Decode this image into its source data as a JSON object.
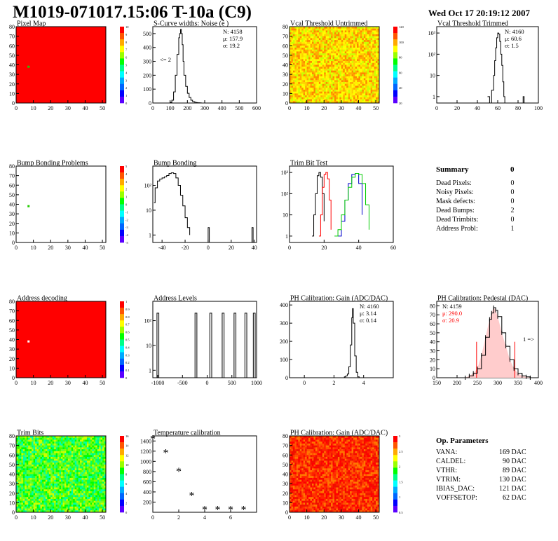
{
  "title": "M1019-071017.15:06 T-10a (C9)",
  "date": "Wed Oct 17 20:19:12 2007",
  "colors": {
    "red": "#ff0000",
    "black": "#000000",
    "blue": "#0000cc",
    "green": "#00cc00",
    "palette": [
      "#5a00ff",
      "#0000ff",
      "#0066ff",
      "#00aaff",
      "#00ffff",
      "#00ff88",
      "#00ff00",
      "#99ff00",
      "#ffff00",
      "#ffaa00",
      "#ff5500",
      "#ff0000"
    ]
  },
  "chart_data": [
    {
      "id": "pixel-map",
      "type": "heatmap",
      "title": "Pixel Map",
      "xlim": [
        0,
        52
      ],
      "ylim": [
        0,
        80
      ],
      "xticks": [
        "0",
        "10",
        "20",
        "30",
        "40",
        "50"
      ],
      "yticks": [
        "0",
        "10",
        "20",
        "30",
        "40",
        "50",
        "60",
        "70",
        "80"
      ],
      "fill": "red",
      "special_pixels": [
        {
          "x": 7,
          "y": 38,
          "level": "green"
        }
      ],
      "palette_labels": [
        "10",
        "9",
        "8",
        "7",
        "6",
        "5",
        "4",
        "3",
        "2",
        "1",
        "0"
      ]
    },
    {
      "id": "scurve-noise",
      "type": "line",
      "title": "S-Curve widths: Noise (e )",
      "xlim": [
        0,
        600
      ],
      "ylim": [
        0,
        550
      ],
      "xticks": [
        "0",
        "100",
        "200",
        "300",
        "400",
        "500",
        "600"
      ],
      "yticks": [
        "0",
        "100",
        "200",
        "300",
        "400",
        "500"
      ],
      "stats": [
        "N: 4158",
        "μ: 157.9",
        "σ: 19.2"
      ],
      "annotation": "<= 2",
      "x": [
        90,
        100,
        110,
        120,
        130,
        140,
        150,
        155,
        160,
        165,
        170,
        175,
        180,
        190,
        200,
        210,
        220,
        230,
        240,
        250,
        260,
        270,
        280
      ],
      "y": [
        0,
        5,
        20,
        80,
        200,
        350,
        470,
        500,
        530,
        500,
        420,
        300,
        200,
        120,
        70,
        40,
        20,
        10,
        6,
        3,
        2,
        1,
        0
      ]
    },
    {
      "id": "vcal-untrimmed",
      "type": "heatmap",
      "title": "Vcal Threshold Untrimmed",
      "xlim": [
        0,
        52
      ],
      "ylim": [
        0,
        80
      ],
      "xticks": [
        "0",
        "10",
        "20",
        "30",
        "40",
        "50"
      ],
      "yticks": [
        "0",
        "10",
        "20",
        "30",
        "40",
        "50",
        "60",
        "70",
        "80"
      ],
      "fill": "noisy-yellow-orange",
      "palette_labels": [
        "120",
        "100",
        "80",
        "60",
        "40",
        "20"
      ]
    },
    {
      "id": "vcal-trimmed",
      "type": "line",
      "title": "Vcal Threshold Trimmed",
      "log_y": true,
      "xlim": [
        0,
        100
      ],
      "ylim": [
        0.5,
        2000
      ],
      "xticks": [
        "0",
        "20",
        "40",
        "60",
        "80",
        "100"
      ],
      "yticks": [
        "1",
        "10",
        "10²",
        "10³"
      ],
      "stats": [
        "N: 4160",
        "μ: 60.6",
        "σ: 1.5"
      ],
      "x": [
        50,
        51,
        52,
        54,
        56,
        57,
        58,
        59,
        60,
        61,
        62,
        63,
        64,
        65,
        66,
        67,
        68,
        70,
        85,
        86
      ],
      "y": [
        1,
        1,
        0,
        2,
        10,
        50,
        200,
        600,
        1000,
        900,
        400,
        100,
        30,
        5,
        1,
        0,
        0,
        0,
        1,
        0
      ]
    },
    {
      "id": "bump-bonding-problems",
      "type": "heatmap",
      "title": "Bump Bonding Problems",
      "xlim": [
        0,
        52
      ],
      "ylim": [
        0,
        80
      ],
      "xticks": [
        "0",
        "10",
        "20",
        "30",
        "40",
        "50"
      ],
      "yticks": [
        "0",
        "10",
        "20",
        "30",
        "40",
        "50",
        "60",
        "70",
        "80"
      ],
      "fill": "white",
      "special_pixels": [
        {
          "x": 7,
          "y": 38,
          "level": "green"
        }
      ],
      "palette_labels": [
        "5",
        "4",
        "3",
        "2",
        "1",
        "0",
        "-1",
        "-2",
        "-3",
        "-4",
        "-5"
      ]
    },
    {
      "id": "bump-bonding",
      "type": "line",
      "title": "Bump Bonding",
      "log_y": true,
      "xlim": [
        -48,
        42
      ],
      "ylim": [
        0.5,
        600
      ],
      "xticks": [
        "-40",
        "-20",
        "0",
        "20",
        "40"
      ],
      "yticks": [
        "1",
        "10",
        "10²"
      ],
      "x": [
        -47,
        -46,
        -44,
        -42,
        -40,
        -38,
        -36,
        -34,
        -32,
        -30,
        -28,
        -26,
        -24,
        -22,
        -20,
        -18,
        -16
      ],
      "y": [
        20,
        80,
        150,
        180,
        200,
        220,
        250,
        300,
        320,
        300,
        200,
        100,
        40,
        15,
        5,
        2,
        1
      ],
      "outliers": [
        {
          "x": 0,
          "y": 1
        },
        {
          "x": 38,
          "y": 1
        }
      ]
    },
    {
      "id": "trim-bit-test",
      "type": "line",
      "title": "Trim Bit Test",
      "log_y": true,
      "xlim": [
        0,
        60
      ],
      "ylim": [
        0.5,
        2000
      ],
      "xticks": [
        "0",
        "20",
        "40",
        "60"
      ],
      "yticks": [
        "1",
        "10",
        "10²",
        "10³"
      ],
      "series": [
        {
          "color": "black",
          "x": [
            13,
            14,
            15,
            16,
            17,
            18,
            19,
            20
          ],
          "y": [
            1,
            10,
            100,
            700,
            1000,
            600,
            100,
            5
          ]
        },
        {
          "color": "red",
          "x": [
            17,
            18,
            19,
            20,
            21,
            22,
            23,
            24
          ],
          "y": [
            1,
            10,
            200,
            800,
            1000,
            500,
            50,
            2
          ]
        },
        {
          "color": "blue",
          "x": [
            28,
            30,
            32,
            34,
            36,
            38,
            40,
            42
          ],
          "y": [
            1,
            5,
            50,
            300,
            800,
            900,
            300,
            10
          ]
        },
        {
          "color": "green",
          "x": [
            26,
            28,
            30,
            32,
            34,
            36,
            38,
            40,
            42,
            44,
            46
          ],
          "y": [
            1,
            2,
            10,
            50,
            200,
            600,
            900,
            800,
            300,
            30,
            2
          ]
        }
      ]
    },
    {
      "id": "address-decoding",
      "type": "heatmap",
      "title": "Address decoding",
      "xlim": [
        0,
        52
      ],
      "ylim": [
        0,
        80
      ],
      "xticks": [
        "0",
        "10",
        "20",
        "30",
        "40",
        "50"
      ],
      "yticks": [
        "0",
        "10",
        "20",
        "30",
        "40",
        "50",
        "60",
        "70",
        "80"
      ],
      "fill": "red",
      "special_pixels": [
        {
          "x": 7,
          "y": 38,
          "level": "white"
        }
      ],
      "palette_labels": [
        "1",
        "0.9",
        "0.8",
        "0.7",
        "0.6",
        "0.5",
        "0.4",
        "0.3",
        "0.2",
        "0.1",
        "0"
      ]
    },
    {
      "id": "address-levels",
      "type": "line",
      "title": "Address Levels",
      "log_y": true,
      "xlim": [
        -1100,
        1000
      ],
      "ylim": [
        0.5,
        600
      ],
      "xticks": [
        "-1000",
        "-500",
        "0",
        "500",
        "1000"
      ],
      "yticks": [
        "1",
        "10",
        "10²"
      ],
      "peaks": [
        -1000,
        -230,
        70,
        320,
        560,
        780,
        950
      ],
      "peak_height": 200
    },
    {
      "id": "ph-gain",
      "type": "line",
      "title": "PH Calibration: Gain (ADC/DAC)",
      "xlim": [
        -1,
        6
      ],
      "ylim": [
        0,
        420
      ],
      "xticks": [
        "0",
        "2",
        "4"
      ],
      "yticks": [
        "0",
        "100",
        "200",
        "300",
        "400"
      ],
      "stats": [
        "N: 4160",
        "μ: 3.14",
        "σ: 0.14"
      ],
      "x": [
        2.6,
        2.7,
        2.8,
        2.9,
        3.0,
        3.1,
        3.2,
        3.25,
        3.3,
        3.4,
        3.5,
        3.6,
        3.7
      ],
      "y": [
        0,
        5,
        10,
        20,
        60,
        180,
        330,
        380,
        300,
        120,
        30,
        5,
        0
      ]
    },
    {
      "id": "ph-pedestal",
      "type": "line",
      "title": "PH Calibration: Pedestal (DAC)",
      "xlim": [
        150,
        400
      ],
      "ylim": [
        0,
        85
      ],
      "xticks": [
        "150",
        "200",
        "250",
        "300",
        "350",
        "400"
      ],
      "yticks": [
        "0",
        "10",
        "20",
        "30",
        "40",
        "50",
        "60",
        "70",
        "80"
      ],
      "stats": [
        "N: 4159",
        "μ: 290.0",
        "σ: 20.9"
      ],
      "annotation": "1 =>",
      "x": [
        220,
        230,
        240,
        250,
        260,
        270,
        280,
        285,
        290,
        295,
        300,
        310,
        320,
        330,
        340,
        350,
        360,
        370,
        380
      ],
      "y": [
        0,
        2,
        5,
        10,
        25,
        45,
        65,
        72,
        78,
        75,
        68,
        50,
        35,
        20,
        10,
        5,
        2,
        1,
        0
      ],
      "cut_lines": [
        248,
        342
      ]
    },
    {
      "id": "trim-bits",
      "type": "heatmap",
      "title": "Trim Bits",
      "xlim": [
        0,
        52
      ],
      "ylim": [
        0,
        80
      ],
      "xticks": [
        "0",
        "10",
        "20",
        "30",
        "40",
        "50"
      ],
      "yticks": [
        "0",
        "10",
        "20",
        "30",
        "40",
        "50",
        "60",
        "70",
        "80"
      ],
      "fill": "noisy-green-yellow",
      "palette_labels": [
        "16",
        "14",
        "12",
        "10",
        "8",
        "6",
        "4",
        "2",
        "0"
      ]
    },
    {
      "id": "temperature-calibration",
      "type": "scatter",
      "title": "Temperature calibration",
      "xlim": [
        0,
        8
      ],
      "ylim": [
        0,
        1500
      ],
      "xticks": [
        "0",
        "2",
        "4",
        "6"
      ],
      "yticks": [
        "200",
        "400",
        "600",
        "800",
        "1000",
        "1200",
        "1400"
      ],
      "x": [
        0,
        1,
        2,
        3,
        4,
        5,
        6,
        7
      ],
      "y": [
        1440,
        1160,
        800,
        320,
        50,
        50,
        50,
        50
      ]
    },
    {
      "id": "ph-gain-map",
      "type": "heatmap",
      "title": "PH Calibration: Gain (ADC/DAC)",
      "xlim": [
        0,
        52
      ],
      "ylim": [
        0,
        80
      ],
      "xticks": [
        "0",
        "10",
        "20",
        "30",
        "40",
        "50"
      ],
      "yticks": [
        "0",
        "10",
        "20",
        "30",
        "40",
        "50",
        "60",
        "70",
        "80"
      ],
      "fill": "noisy-red-orange",
      "palette_labels": [
        "3",
        "2.5",
        "2",
        "1.5",
        "1",
        "0.5"
      ]
    }
  ],
  "summary": {
    "title": "Summary",
    "value": "0",
    "rows": [
      {
        "label": "Dead Pixels:",
        "value": "0"
      },
      {
        "label": "Noisy Pixels:",
        "value": "0"
      },
      {
        "label": "Mask defects:",
        "value": "0"
      },
      {
        "label": "Dead Bumps:",
        "value": "2"
      },
      {
        "label": "Dead Trimbits:",
        "value": "0"
      },
      {
        "label": "Address Probl:",
        "value": "1"
      }
    ]
  },
  "op_params": {
    "title": "Op. Parameters",
    "rows": [
      {
        "label": "VANA:",
        "value": "169 DAC"
      },
      {
        "label": "CALDEL:",
        "value": "90 DAC"
      },
      {
        "label": "VTHR:",
        "value": "89 DAC"
      },
      {
        "label": "VTRIM:",
        "value": "130 DAC"
      },
      {
        "label": "IBIAS_DAC:",
        "value": "121 DAC"
      },
      {
        "label": "VOFFSETOP:",
        "value": "62 DAC"
      }
    ]
  }
}
